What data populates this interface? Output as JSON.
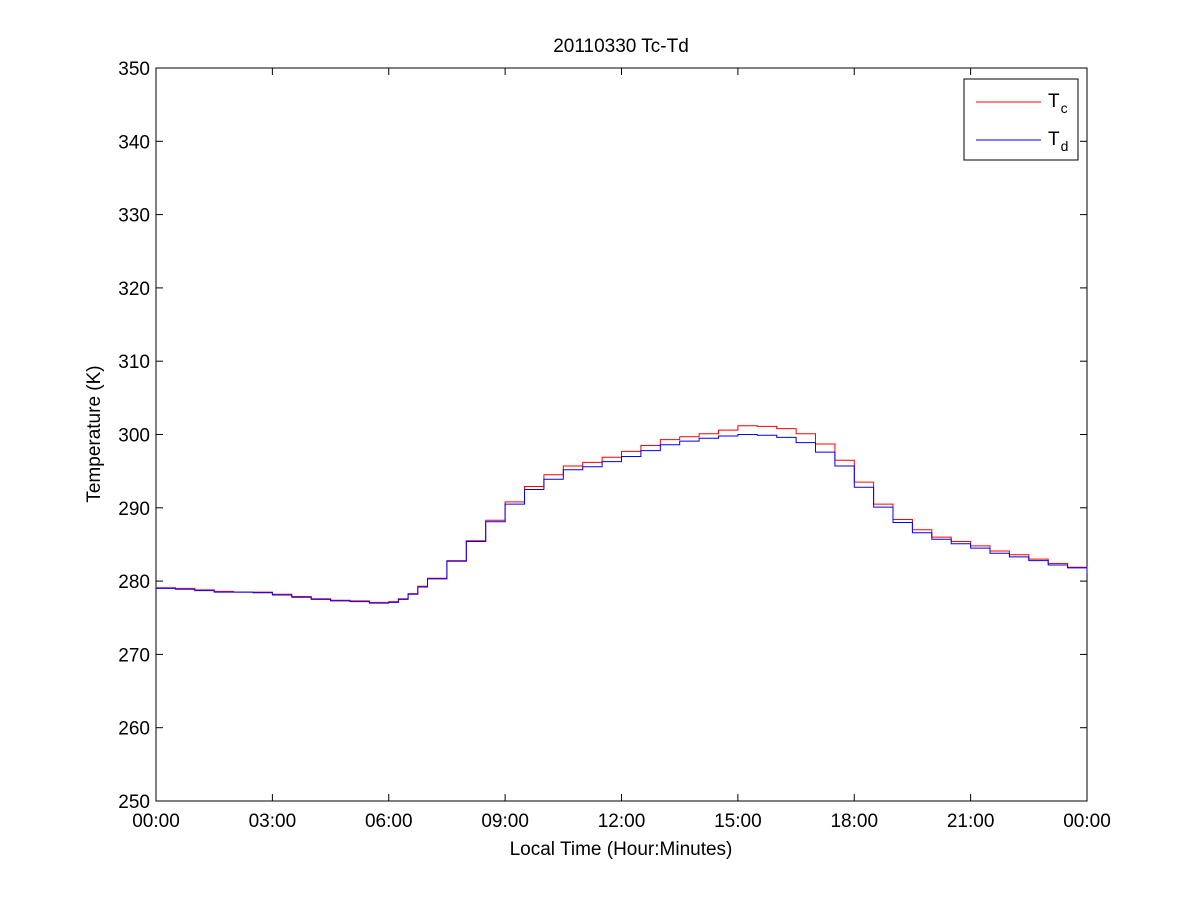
{
  "chart_data": {
    "type": "line",
    "title": "20110330 Tc-Td",
    "xlabel": "Local Time (Hour:Minutes)",
    "ylabel": "Temperature (K)",
    "xlim": [
      0,
      24
    ],
    "ylim": [
      250,
      350
    ],
    "x_ticks": [
      {
        "value": 0,
        "label": "00:00"
      },
      {
        "value": 3,
        "label": "03:00"
      },
      {
        "value": 6,
        "label": "06:00"
      },
      {
        "value": 9,
        "label": "09:00"
      },
      {
        "value": 12,
        "label": "12:00"
      },
      {
        "value": 15,
        "label": "15:00"
      },
      {
        "value": 18,
        "label": "18:00"
      },
      {
        "value": 21,
        "label": "21:00"
      },
      {
        "value": 24,
        "label": "00:00"
      }
    ],
    "y_ticks": [
      {
        "value": 250,
        "label": "250"
      },
      {
        "value": 260,
        "label": "260"
      },
      {
        "value": 270,
        "label": "270"
      },
      {
        "value": 280,
        "label": "280"
      },
      {
        "value": 290,
        "label": "290"
      },
      {
        "value": 300,
        "label": "300"
      },
      {
        "value": 310,
        "label": "310"
      },
      {
        "value": 320,
        "label": "320"
      },
      {
        "value": 330,
        "label": "330"
      },
      {
        "value": 340,
        "label": "340"
      },
      {
        "value": 350,
        "label": "350"
      }
    ],
    "grid": false,
    "legend_position": "top-right",
    "series": [
      {
        "name": "T",
        "subscript": "c",
        "color": "#ff0000",
        "x": [
          0,
          0.5,
          1.0,
          1.5,
          2.0,
          2.5,
          3.0,
          3.5,
          4.0,
          4.5,
          5.0,
          5.5,
          6.0,
          6.25,
          6.5,
          6.75,
          7.0,
          7.5,
          8.0,
          8.5,
          9.0,
          9.5,
          10.0,
          10.5,
          11.0,
          11.5,
          12.0,
          12.5,
          13.0,
          13.5,
          14.0,
          14.5,
          15.0,
          15.5,
          16.0,
          16.5,
          17.0,
          17.5,
          18.0,
          18.5,
          19.0,
          19.5,
          20.0,
          20.5,
          21.0,
          21.5,
          22.0,
          22.5,
          23.0,
          23.5,
          24.0
        ],
        "y": [
          279.1,
          279.0,
          278.8,
          278.6,
          278.5,
          278.5,
          278.2,
          277.9,
          277.6,
          277.4,
          277.3,
          277.1,
          277.2,
          277.6,
          278.3,
          279.3,
          280.4,
          282.8,
          285.5,
          288.3,
          290.8,
          292.9,
          294.5,
          295.7,
          296.2,
          296.9,
          297.7,
          298.5,
          299.3,
          299.7,
          300.1,
          300.6,
          301.2,
          301.1,
          300.8,
          300.1,
          298.7,
          296.5,
          293.5,
          290.5,
          288.4,
          287.0,
          286.0,
          285.4,
          284.8,
          284.1,
          283.6,
          283.0,
          282.4,
          281.9,
          281.2
        ]
      },
      {
        "name": "T",
        "subscript": "d",
        "color": "#0000ff",
        "x": [
          0,
          0.5,
          1.0,
          1.5,
          2.0,
          2.5,
          3.0,
          3.5,
          4.0,
          4.5,
          5.0,
          5.5,
          6.0,
          6.25,
          6.5,
          6.75,
          7.0,
          7.5,
          8.0,
          8.5,
          9.0,
          9.5,
          10.0,
          10.5,
          11.0,
          11.5,
          12.0,
          12.5,
          13.0,
          13.5,
          14.0,
          14.5,
          15.0,
          15.5,
          16.0,
          16.5,
          17.0,
          17.5,
          18.0,
          18.5,
          19.0,
          19.5,
          20.0,
          20.5,
          21.0,
          21.5,
          22.0,
          22.5,
          23.0,
          23.5,
          24.0
        ],
        "y": [
          279.0,
          278.9,
          278.7,
          278.5,
          278.5,
          278.4,
          278.1,
          277.8,
          277.5,
          277.3,
          277.2,
          277.0,
          277.1,
          277.5,
          278.2,
          279.2,
          280.3,
          282.7,
          285.4,
          288.1,
          290.5,
          292.5,
          293.9,
          295.2,
          295.6,
          296.3,
          297.0,
          297.8,
          298.6,
          299.1,
          299.5,
          299.8,
          300.0,
          299.9,
          299.6,
          298.9,
          297.6,
          295.7,
          292.8,
          290.1,
          288.0,
          286.6,
          285.7,
          285.1,
          284.5,
          283.8,
          283.3,
          282.8,
          282.2,
          281.8,
          281.1
        ]
      }
    ]
  }
}
